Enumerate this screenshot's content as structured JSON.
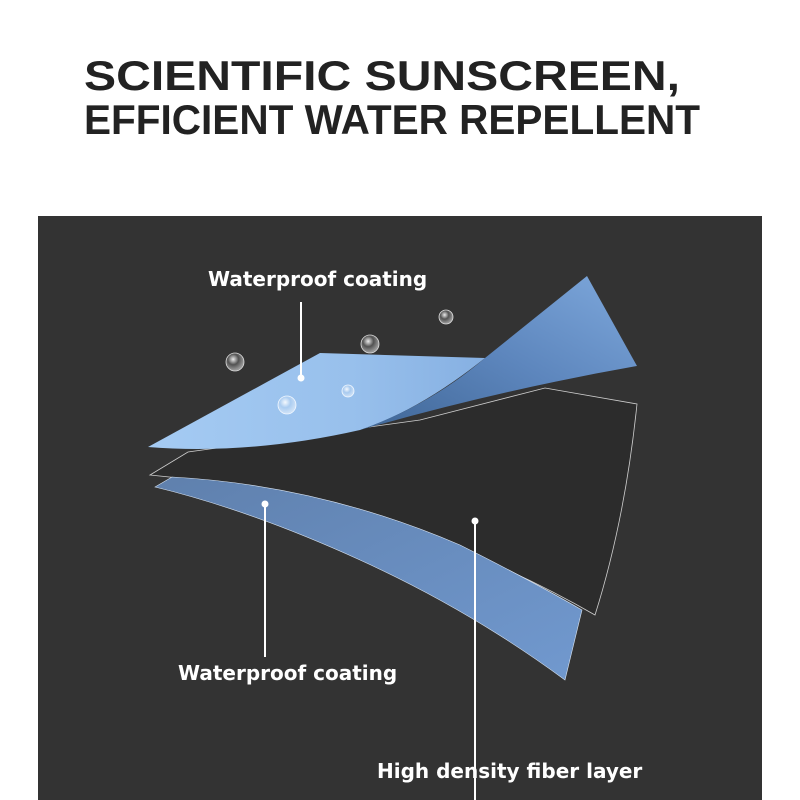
{
  "title": {
    "line1": "SCIENTIFIC SUNSCREEN,",
    "line2": "EFFICIENT WATER REPELLENT"
  },
  "diagram": {
    "labels": {
      "top_layer": "Waterproof coating",
      "bottom_layer": "Waterproof coating",
      "middle_layer": "High density fiber layer"
    },
    "colors": {
      "panel": "#333333",
      "coating_light": "#9ec4ef",
      "coating_dark": "#5b80b3",
      "bottom_coating": "#6d91c4",
      "fiber": "#2e2e2e"
    }
  }
}
